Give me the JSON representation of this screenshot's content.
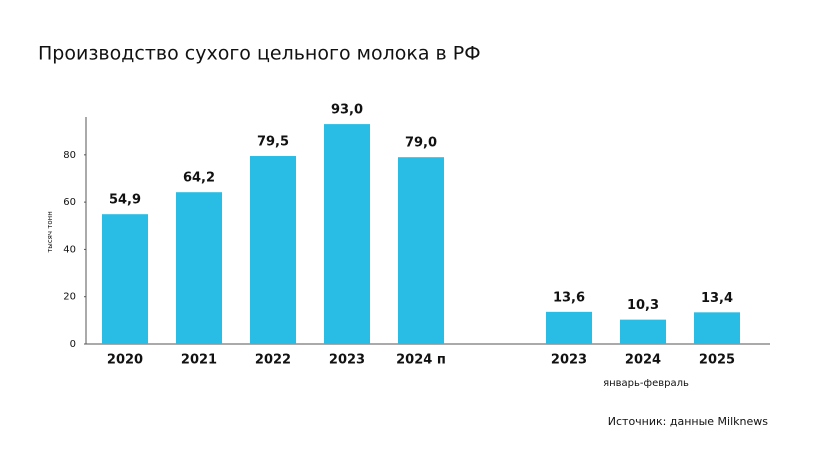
{
  "chart_data": {
    "type": "bar",
    "title": "Производство сухого цельного молока в РФ",
    "y_label": "тысяч тонн",
    "categories": [
      "2020",
      "2021",
      "2022",
      "2023",
      "2024 п",
      null,
      "2023",
      "2024",
      "2025"
    ],
    "values": [
      54.9,
      64.2,
      79.5,
      93.0,
      79.0,
      null,
      13.6,
      10.3,
      13.4
    ],
    "value_labels": [
      "54,9",
      "64,2",
      "79,5",
      "93,0",
      "79,0",
      null,
      "13,6",
      "10,3",
      "13,4"
    ],
    "color": "#29bde6",
    "ylim": [
      0,
      96
    ],
    "yticks": [
      0,
      20,
      40,
      60,
      80
    ],
    "grid": false,
    "annotation": "январь-февраль",
    "source": "Источник: данные Milknews"
  }
}
